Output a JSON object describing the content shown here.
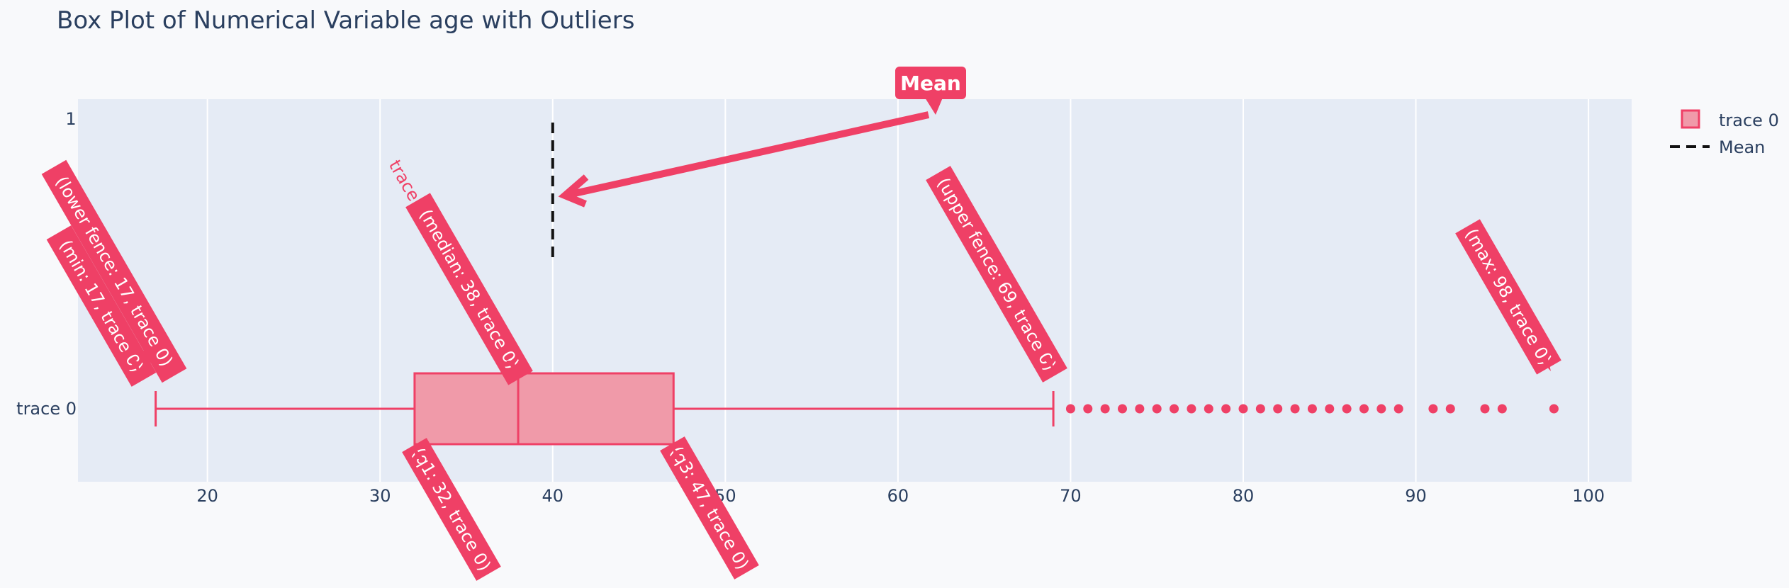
{
  "chart_data": {
    "type": "box",
    "title": "Box Plot of Numerical Variable age with Outliers",
    "xlabel": "",
    "ylabel": "",
    "xlim": [
      12.5,
      102.5
    ],
    "xticks": [
      20,
      30,
      40,
      50,
      60,
      70,
      80,
      90,
      100
    ],
    "y_categories": [
      "trace 0"
    ],
    "y_secondary_tick": "1",
    "grid": true,
    "legend_position": "top-right",
    "colors": {
      "accent": "#ef4066",
      "box_fill": "#f09aa9",
      "plot_bg": "#e5ebf5",
      "paper_bg": "#f8f9fb",
      "text": "#2a3f5f",
      "mean_line": "#111111"
    },
    "series": [
      {
        "name": "trace 0",
        "min": 17,
        "lower_fence": 17,
        "q1": 32,
        "median": 38,
        "q3": 47,
        "upper_fence": 69,
        "max": 98,
        "outliers": [
          70,
          71,
          72,
          73,
          74,
          75,
          76,
          77,
          78,
          79,
          80,
          81,
          82,
          83,
          84,
          85,
          86,
          87,
          88,
          89,
          91,
          92,
          94,
          95,
          98
        ]
      },
      {
        "name": "Mean",
        "type": "line",
        "style": "dashed",
        "x": 40
      }
    ],
    "legend": [
      "trace 0",
      "Mean"
    ],
    "annotations": [
      {
        "text": "(lower fence: 17, trace 0)",
        "x": 17
      },
      {
        "text": "(min: 17, trace 0)",
        "x": 17
      },
      {
        "text": "(median: 38, trace 0)",
        "x": 38
      },
      {
        "text": "(upper fence: 69, trace 0)",
        "x": 69
      },
      {
        "text": "(max: 98, trace 0)",
        "x": 98
      },
      {
        "text": "(q1: 32, trace 0)",
        "x": 32
      },
      {
        "text": "(q3: 47, trace 0)",
        "x": 47
      }
    ],
    "mean_annotation": "Mean",
    "floating_label": "trace 0"
  }
}
